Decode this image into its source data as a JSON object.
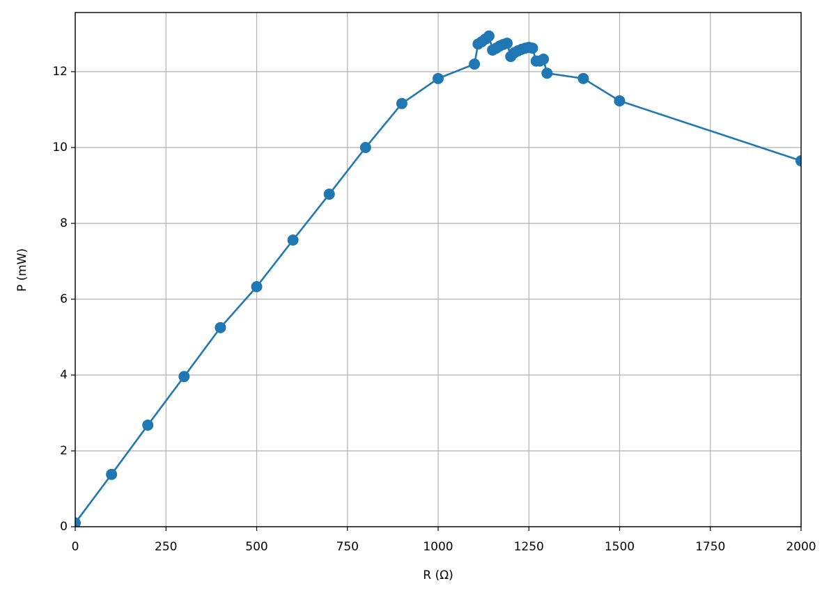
{
  "chart_data": {
    "type": "line",
    "xlabel": "R (Ω)",
    "ylabel": "P (mW)",
    "x": [
      0,
      100,
      200,
      300,
      400,
      500,
      600,
      700,
      800,
      900,
      1000,
      1100,
      1110,
      1120,
      1130,
      1140,
      1150,
      1160,
      1170,
      1180,
      1190,
      1200,
      1210,
      1220,
      1230,
      1240,
      1250,
      1260,
      1270,
      1280,
      1290,
      1300,
      1400,
      1500,
      2000
    ],
    "values": [
      0.1,
      1.38,
      2.68,
      3.96,
      5.25,
      6.33,
      7.56,
      8.77,
      10.0,
      11.16,
      11.82,
      12.2,
      12.73,
      12.79,
      12.86,
      12.94,
      12.57,
      12.62,
      12.68,
      12.72,
      12.75,
      12.4,
      12.5,
      12.55,
      12.59,
      12.62,
      12.64,
      12.62,
      12.28,
      12.28,
      12.33,
      11.96,
      11.82,
      11.23,
      9.65
    ],
    "color": "#1f77b4",
    "markers": true,
    "grid": true,
    "xlim": [
      0,
      2000
    ],
    "xticks": [
      0,
      250,
      500,
      750,
      1000,
      1250,
      1500,
      1750,
      2000
    ],
    "ylim": [
      0,
      13.56
    ],
    "yticks": [
      0,
      2,
      4,
      6,
      8,
      10,
      12
    ]
  }
}
